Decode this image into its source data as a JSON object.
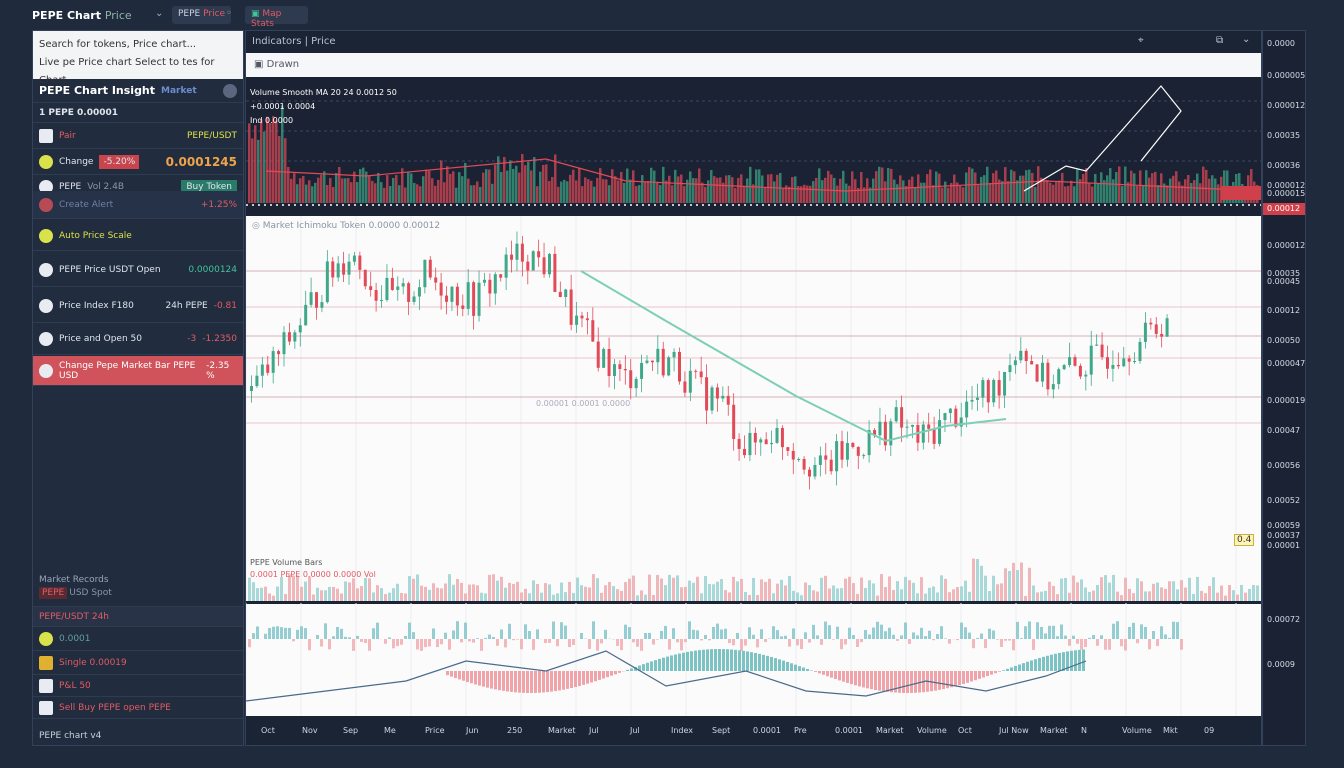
{
  "topbar": {
    "title": "PEPE Chart",
    "title_suffix": "Price",
    "pair_button": "PEPE",
    "pair_button2": "Price",
    "stats_button": "Map Stats"
  },
  "search": {
    "placeholder": "Search for tokens, Price chart...",
    "line2": "Live pe Price chart Select to tes for Chart."
  },
  "left": {
    "header": "PEPE Chart Insight",
    "header_tag": "Market",
    "sub": "1 PEPE 0.00001",
    "r1": {
      "label": "Pair",
      "value": "PEPE/USDT"
    },
    "r2": {
      "label": "Change",
      "badge": "-5.20%",
      "big": "0.0001245"
    },
    "r3": {
      "label": "PEPE",
      "value": "Vol 2.4B",
      "button": "Buy Token"
    },
    "items": [
      {
        "label": "Create Alert",
        "value": "+1.25%"
      },
      {
        "label": "Auto Price Scale",
        "value": ""
      },
      {
        "label": "PEPE Price USDT Open",
        "value": "0.0000124"
      },
      {
        "label": "Price Index F180",
        "value": "24h PEPE",
        "value2": "-0.81"
      },
      {
        "label": "Price and Open 50",
        "value": "-3",
        "value2": "-1.2350"
      },
      {
        "label": "Change Pepe Market Bar PEPE USD",
        "value": "-2.35 %"
      }
    ],
    "bottom_header": "Market Records",
    "bottom_tag": "PEPE",
    "bottom_tag_text": "USD Spot",
    "bottom_title": "PEPE/USDT 24h",
    "list": [
      {
        "label": "0.0001"
      },
      {
        "label": "Single 0.00019"
      },
      {
        "label": "P&L 50"
      },
      {
        "label": "Sell Buy PEPE open PEPE"
      }
    ],
    "footer": "PEPE chart v4"
  },
  "main": {
    "header": "Indicators | Price",
    "toolbar": "Drawn",
    "vol_info": [
      "Volume Smooth MA 20  24 0.0012 50",
      "+0.0001 0.0004",
      "Ind 0.0000"
    ],
    "chart_info": "Market Ichimoku Token 0.0000 0.00012",
    "mid_label": "0.00001 0.0001 0.0000",
    "low_info": [
      "PEPE Volume Bars",
      "0.0001 PEPE 0.0000 0.0000 Vol"
    ],
    "marker": "0.4",
    "closes": [
      1.58,
      1.9,
      2.28,
      2.7,
      2.98,
      2.6,
      2.48,
      2.73,
      2.6,
      2.48,
      2.75,
      2.98,
      2.83,
      2.3,
      1.98,
      1.68,
      1.9,
      1.88,
      1.6,
      1.48,
      0.98,
      1.18,
      1.0,
      0.78,
      0.98,
      1.1,
      1.28,
      1.08,
      1.28,
      1.45,
      1.58,
      2.08,
      1.68,
      1.78,
      1.88,
      2.0,
      2.08,
      2.33
    ],
    "x_labels": [
      "Oct",
      "Nov",
      "Sep",
      "Me",
      "Price",
      "Jun",
      "250",
      "Market",
      "Jul",
      "Jul",
      "Index",
      "Sept",
      "0.0001",
      "Pre",
      "0.0001",
      "Market",
      "Volume",
      "Oct",
      "Jul Now",
      "Market",
      "N",
      "Volume",
      "Mkt",
      "09"
    ]
  },
  "axis": {
    "labels": [
      "0.0000",
      "0.000005",
      "0.000012",
      "0.00035",
      "0.00036",
      "0.000012",
      "0.000015",
      "0.000012",
      "0.00035",
      "0.00045",
      "0.00012",
      "0.00050",
      "0.000047",
      "0.000019",
      "0.00047",
      "0.00056",
      "0.00052",
      "0.00059",
      "0.00037",
      "0.00001"
    ],
    "current": "0.00012",
    "osc": [
      "0.00072",
      "0.0009"
    ]
  },
  "colors": {
    "up": "#3fa889",
    "down": "#e24a57",
    "ma": "#7ccfb4",
    "bg": "#1f2a3c"
  }
}
